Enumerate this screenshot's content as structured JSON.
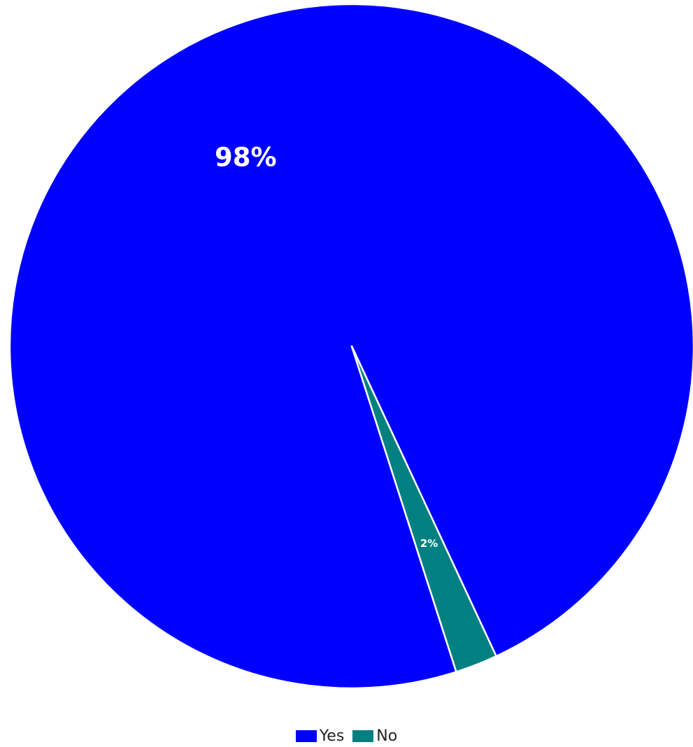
{
  "colors": {
    "yes": "#0000ff",
    "no": "#008080",
    "separator": "#ffffff"
  },
  "chart_data": {
    "type": "pie",
    "categories": [
      "Yes",
      "No"
    ],
    "values": [
      98,
      2
    ],
    "data_labels": [
      "98%",
      "2%"
    ],
    "legend": {
      "placement": "bottom",
      "entries": [
        "Yes",
        "No"
      ]
    },
    "title": ""
  }
}
